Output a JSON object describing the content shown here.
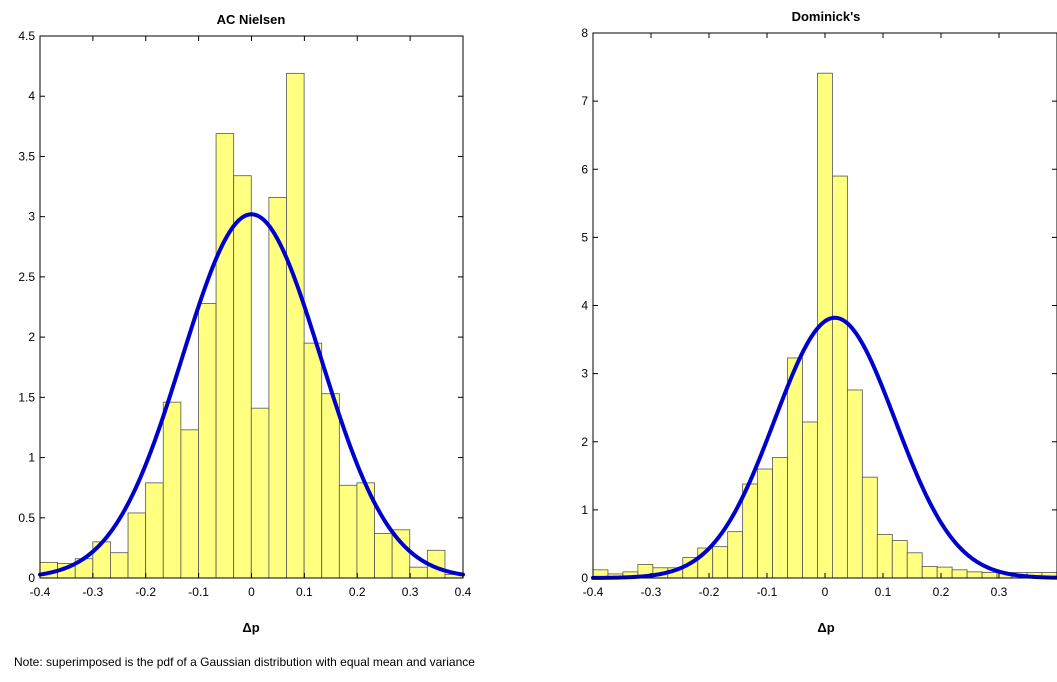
{
  "note": "Note: superimposed is the pdf of a Gaussian distribution with equal mean and variance",
  "colors": {
    "bar_fill": "#FFFF80",
    "bar_edge": "#555555",
    "curve": "#0000CC",
    "axes": "#000000"
  },
  "chart_data": [
    {
      "type": "bar",
      "title": "AC Nielsen",
      "xlabel": "Δp",
      "ylabel": "",
      "xlim": [
        -0.4,
        0.4
      ],
      "ylim": [
        0,
        4.5
      ],
      "xticks": [
        "-0.4",
        "-0.3",
        "-0.2",
        "-0.1",
        "0",
        "0.1",
        "0.2",
        "0.3",
        "0.4"
      ],
      "xtick_values": [
        -0.4,
        -0.3,
        -0.2,
        -0.1,
        0,
        0.1,
        0.2,
        0.3,
        0.4
      ],
      "yticks": [
        "0",
        "0.5",
        "1",
        "1.5",
        "2",
        "2.5",
        "3",
        "3.5",
        "4",
        "4.5"
      ],
      "ytick_values": [
        0,
        0.5,
        1,
        1.5,
        2,
        2.5,
        3,
        3.5,
        4,
        4.5
      ],
      "grid": false,
      "bins": {
        "start": -0.4,
        "width": 0.0333,
        "values": [
          0.13,
          0.12,
          0.16,
          0.3,
          0.21,
          0.54,
          0.79,
          1.46,
          1.23,
          2.28,
          3.69,
          3.34,
          1.41,
          3.16,
          4.19,
          1.95,
          1.53,
          0.77,
          0.79,
          0.37,
          0.4,
          0.09,
          0.23,
          0.03
        ]
      },
      "gaussian": {
        "mean": 0.0,
        "peak": 3.02,
        "sigma": 0.131
      }
    },
    {
      "type": "bar",
      "title": "Dominick's",
      "xlabel": "Δp",
      "ylabel": "",
      "xlim": [
        -0.4,
        0.4
      ],
      "ylim": [
        0,
        8
      ],
      "xticks": [
        "-0.4",
        "-0.3",
        "-0.2",
        "-0.1",
        "0",
        "0.1",
        "0.2",
        "0.3"
      ],
      "xtick_values": [
        -0.4,
        -0.3,
        -0.2,
        -0.1,
        0,
        0.1,
        0.2,
        0.3
      ],
      "yticks": [
        "0",
        "1",
        "2",
        "3",
        "4",
        "5",
        "6",
        "7",
        "8"
      ],
      "ytick_values": [
        0,
        1,
        2,
        3,
        4,
        5,
        6,
        7,
        8
      ],
      "grid": false,
      "bins": {
        "start": -0.4,
        "width": 0.0258,
        "values": [
          0.12,
          0.06,
          0.09,
          0.2,
          0.15,
          0.15,
          0.3,
          0.44,
          0.46,
          0.68,
          1.38,
          1.6,
          1.77,
          3.23,
          2.29,
          7.41,
          5.9,
          2.76,
          1.48,
          0.64,
          0.55,
          0.37,
          0.17,
          0.16,
          0.12,
          0.09,
          0.08,
          0.08,
          0.08,
          0.08,
          0.08
        ]
      },
      "gaussian": {
        "mean": 0.017,
        "peak": 3.82,
        "sigma": 0.104
      }
    }
  ]
}
